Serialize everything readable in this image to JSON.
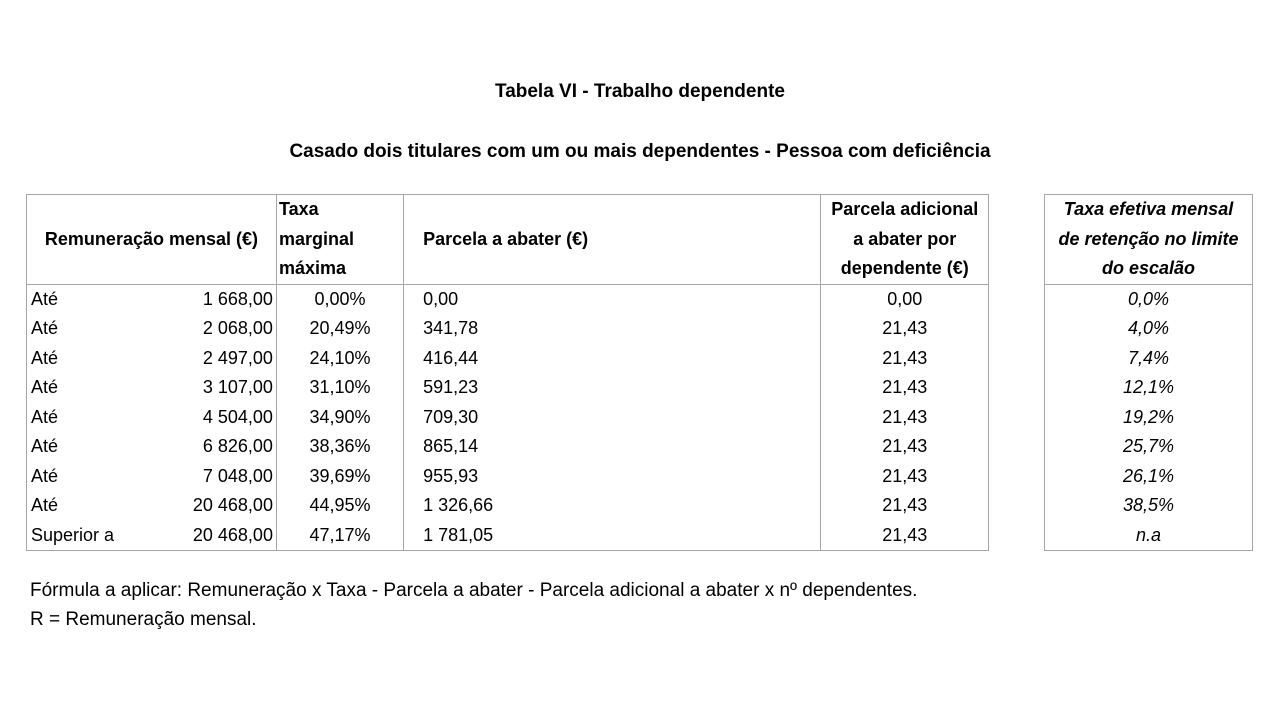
{
  "title": "Tabela VI - Trabalho dependente",
  "subtitle": "Casado dois titulares com um ou mais dependentes - Pessoa com deficiência",
  "table": {
    "headers": {
      "remuneracao": "Remuneração mensal (€)",
      "taxa": [
        "Taxa",
        "marginal",
        "máxima"
      ],
      "parcela": "Parcela a abater (€)",
      "adicional": [
        "Parcela adicional",
        "a abater por",
        "dependente (€)"
      ]
    },
    "rows": [
      {
        "label": "Até",
        "amount": "1 668,00",
        "rate": "0,00%",
        "parcela": "0,00",
        "adicional": "0,00"
      },
      {
        "label": "Até",
        "amount": "2 068,00",
        "rate": "20,49%",
        "parcela": "341,78",
        "adicional": "21,43"
      },
      {
        "label": "Até",
        "amount": "2 497,00",
        "rate": "24,10%",
        "parcela": "416,44",
        "adicional": "21,43"
      },
      {
        "label": "Até",
        "amount": "3 107,00",
        "rate": "31,10%",
        "parcela": "591,23",
        "adicional": "21,43"
      },
      {
        "label": "Até",
        "amount": "4 504,00",
        "rate": "34,90%",
        "parcela": "709,30",
        "adicional": "21,43"
      },
      {
        "label": "Até",
        "amount": "6 826,00",
        "rate": "38,36%",
        "parcela": "865,14",
        "adicional": "21,43"
      },
      {
        "label": "Até",
        "amount": "7 048,00",
        "rate": "39,69%",
        "parcela": "955,93",
        "adicional": "21,43"
      },
      {
        "label": "Até",
        "amount": "20 468,00",
        "rate": "44,95%",
        "parcela": "1 326,66",
        "adicional": "21,43"
      },
      {
        "label": "Superior a",
        "amount": "20 468,00",
        "rate": "47,17%",
        "parcela": "1 781,05",
        "adicional": "21,43"
      }
    ]
  },
  "effective_table": {
    "header": [
      "Taxa efetiva mensal",
      "de retenção no limite",
      "do escalão"
    ],
    "values": [
      "0,0%",
      "4,0%",
      "7,4%",
      "12,1%",
      "19,2%",
      "25,7%",
      "26,1%",
      "38,5%",
      "n.a"
    ]
  },
  "footer": {
    "formula": "Fórmula a aplicar: Remuneração x Taxa - Parcela a abater - Parcela adicional a abater x nº dependentes.",
    "r_definition": "R = Remuneração mensal."
  }
}
